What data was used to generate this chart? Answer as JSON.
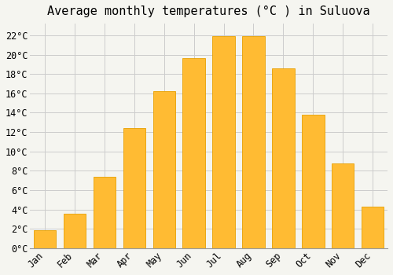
{
  "title": "Average monthly temperatures (°C ) in Suluova",
  "months": [
    "Jan",
    "Feb",
    "Mar",
    "Apr",
    "May",
    "Jun",
    "Jul",
    "Aug",
    "Sep",
    "Oct",
    "Nov",
    "Dec"
  ],
  "temperatures": [
    1.9,
    3.6,
    7.4,
    12.4,
    16.2,
    19.6,
    21.9,
    21.9,
    18.6,
    13.8,
    8.8,
    4.3
  ],
  "bar_color": "#FFBB33",
  "bar_edge_color": "#E8A000",
  "background_color": "#F5F5F0",
  "plot_bg_color": "#F5F5F0",
  "grid_color": "#CCCCCC",
  "ytick_labels": [
    "0°C",
    "2°C",
    "4°C",
    "6°C",
    "8°C",
    "10°C",
    "12°C",
    "14°C",
    "16°C",
    "18°C",
    "20°C",
    "22°C"
  ],
  "ytick_values": [
    0,
    2,
    4,
    6,
    8,
    10,
    12,
    14,
    16,
    18,
    20,
    22
  ],
  "ylim": [
    0,
    23.2
  ],
  "title_fontsize": 11,
  "tick_fontsize": 8.5,
  "font_family": "monospace",
  "bar_width": 0.75
}
